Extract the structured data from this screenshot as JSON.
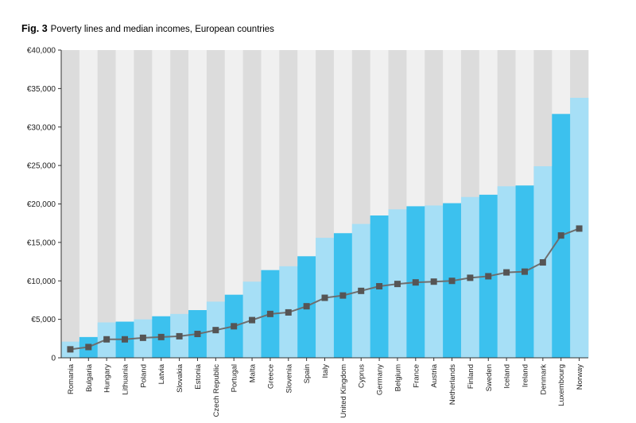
{
  "figure": {
    "number": "Fig. 3",
    "title": "Poverty lines and median incomes, European countries"
  },
  "chart_data": {
    "type": "bar",
    "title": "Poverty lines and median incomes, European countries",
    "xlabel": "",
    "ylabel": "",
    "ylim": [
      0,
      40000
    ],
    "yticks": [
      0,
      5000,
      10000,
      15000,
      20000,
      25000,
      30000,
      35000,
      40000
    ],
    "ytick_labels": [
      "0",
      "€5,000",
      "€10,000",
      "€15,000",
      "€20,000",
      "€25,000",
      "€30,000",
      "€35,000",
      "€40,000"
    ],
    "grid": false,
    "legend": "none",
    "categories": [
      "Romania",
      "Bulgaria",
      "Hungary",
      "Lithuania",
      "Poland",
      "Latvia",
      "Slovakia",
      "Estonia",
      "Czech Republic",
      "Portugal",
      "Malta",
      "Greece",
      "Slovenia",
      "Spain",
      "Italy",
      "United Kingdom",
      "Cyprus",
      "Germany",
      "Belgium",
      "France",
      "Austria",
      "Netherlands",
      "Finland",
      "Sweden",
      "Iceland",
      "Ireland",
      "Denmark",
      "Luxembourg",
      "Norway"
    ],
    "series": [
      {
        "type": "bar",
        "values": [
          2100,
          2700,
          4600,
          4700,
          5000,
          5400,
          5700,
          6200,
          7300,
          8200,
          9900,
          11400,
          11900,
          13200,
          15600,
          16200,
          17400,
          18500,
          19300,
          19700,
          19800,
          20100,
          20900,
          21200,
          22300,
          22400,
          24900,
          31700,
          33800
        ]
      },
      {
        "type": "line",
        "values": [
          1100,
          1400,
          2400,
          2400,
          2600,
          2700,
          2800,
          3100,
          3600,
          4100,
          4900,
          5700,
          5900,
          6700,
          7800,
          8100,
          8700,
          9300,
          9600,
          9800,
          9900,
          10000,
          10400,
          10600,
          11100,
          11200,
          12400,
          15900,
          16800
        ]
      }
    ],
    "colors": {
      "bar_dark": "#3cc1ee",
      "bar_light": "#a6dff6",
      "band_dark": "#dcdcdc",
      "band_light": "#f0f0f0",
      "line": "#6e6e6e",
      "marker": "#555555"
    }
  }
}
